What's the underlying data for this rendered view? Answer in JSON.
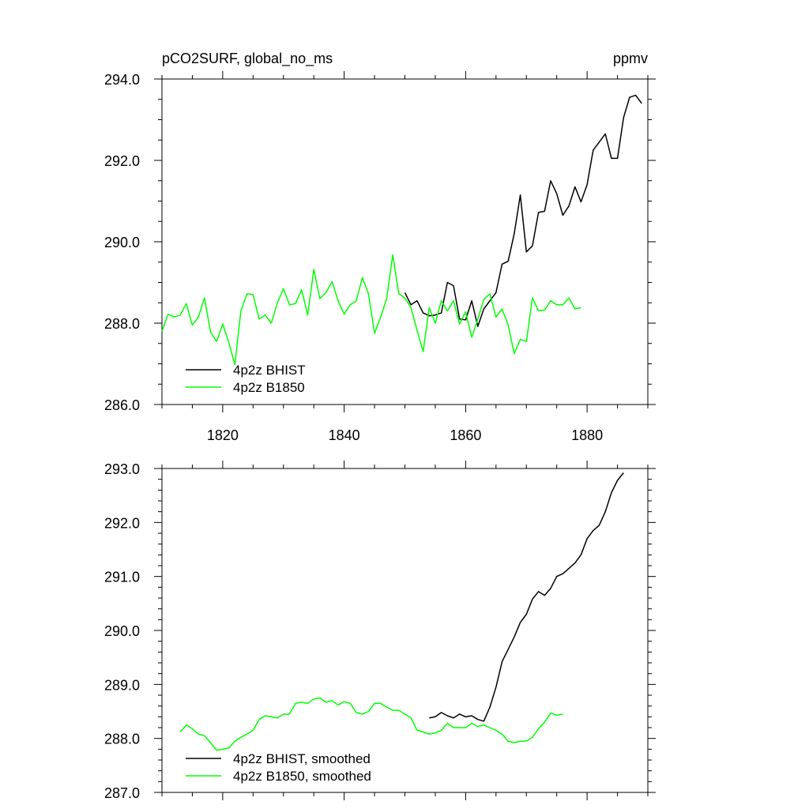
{
  "chart_data": [
    {
      "type": "line",
      "title": "pCO2SURF, global_no_ms",
      "units": "ppmv",
      "xlim": [
        1810,
        1890
      ],
      "ylim": [
        286.0,
        294.0
      ],
      "yticks": [
        "286.0",
        "288.0",
        "290.0",
        "292.0",
        "294.0"
      ],
      "xticks": [
        "1820",
        "1840",
        "1860",
        "1880"
      ],
      "grid": false,
      "legend_position": "bottom-left",
      "series": [
        {
          "name": "4p2z BHIST",
          "color": "#000000",
          "x": [
            1850,
            1851,
            1852,
            1853,
            1854,
            1855,
            1856,
            1857,
            1858,
            1859,
            1860,
            1861,
            1862,
            1863,
            1864,
            1865,
            1866,
            1867,
            1868,
            1869,
            1870,
            1871,
            1872,
            1873,
            1874,
            1875,
            1876,
            1877,
            1878,
            1879,
            1880,
            1881,
            1882,
            1883,
            1884,
            1885,
            1886,
            1887,
            1888,
            1889
          ],
          "values": [
            288.75,
            288.45,
            288.55,
            288.25,
            288.18,
            288.2,
            288.25,
            289.0,
            288.92,
            288.1,
            288.08,
            288.55,
            287.92,
            288.35,
            288.55,
            288.75,
            289.45,
            289.52,
            290.2,
            291.15,
            289.75,
            289.9,
            290.72,
            290.75,
            291.5,
            291.18,
            290.65,
            290.88,
            291.35,
            290.98,
            291.4,
            292.25,
            292.45,
            292.65,
            292.05,
            292.05,
            293.05,
            293.55,
            293.6,
            293.4
          ]
        },
        {
          "name": "4p2z B1850",
          "color": "#00ff00",
          "x": [
            1810,
            1811,
            1812,
            1813,
            1814,
            1815,
            1816,
            1817,
            1818,
            1819,
            1820,
            1821,
            1822,
            1823,
            1824,
            1825,
            1826,
            1827,
            1828,
            1829,
            1830,
            1831,
            1832,
            1833,
            1834,
            1835,
            1836,
            1837,
            1838,
            1839,
            1840,
            1841,
            1842,
            1843,
            1844,
            1845,
            1846,
            1847,
            1848,
            1849,
            1850,
            1851,
            1852,
            1853,
            1854,
            1855,
            1856,
            1857,
            1858,
            1859,
            1860,
            1861,
            1862,
            1863,
            1864,
            1865,
            1866,
            1867,
            1868,
            1869,
            1870,
            1871,
            1872,
            1873,
            1874,
            1875,
            1876,
            1877,
            1878,
            1879
          ],
          "values": [
            287.8,
            288.22,
            288.15,
            288.2,
            288.48,
            287.95,
            288.15,
            288.62,
            287.78,
            287.55,
            287.98,
            287.52,
            286.98,
            288.3,
            288.72,
            288.7,
            288.1,
            288.2,
            288.0,
            288.5,
            288.85,
            288.45,
            288.48,
            288.82,
            288.2,
            289.32,
            288.6,
            288.75,
            289.02,
            288.55,
            288.22,
            288.45,
            288.55,
            289.12,
            288.72,
            287.75,
            288.15,
            288.6,
            289.68,
            288.72,
            288.62,
            288.38,
            287.82,
            287.3,
            288.38,
            288.0,
            288.55,
            288.3,
            288.55,
            287.98,
            288.28,
            287.65,
            288.1,
            288.58,
            288.72,
            288.15,
            288.35,
            287.95,
            287.25,
            287.6,
            287.55,
            288.62,
            288.3,
            288.32,
            288.55,
            288.45,
            288.45,
            288.62,
            288.35,
            288.38
          ]
        }
      ]
    },
    {
      "type": "line",
      "title": "",
      "xlim": [
        1810,
        1890
      ],
      "ylim": [
        287.0,
        293.0
      ],
      "yticks": [
        "287.0",
        "288.0",
        "289.0",
        "290.0",
        "291.0",
        "292.0",
        "293.0"
      ],
      "grid": false,
      "legend_position": "bottom-left",
      "series": [
        {
          "name": "4p2z BHIST, smoothed",
          "color": "#000000",
          "x": [
            1854,
            1855,
            1856,
            1857,
            1858,
            1859,
            1860,
            1861,
            1862,
            1863,
            1864,
            1865,
            1866,
            1867,
            1868,
            1869,
            1870,
            1871,
            1872,
            1873,
            1874,
            1875,
            1876,
            1877,
            1878,
            1879,
            1880,
            1881,
            1882,
            1883,
            1884,
            1885,
            1886
          ],
          "values": [
            288.38,
            288.4,
            288.48,
            288.42,
            288.38,
            288.45,
            288.4,
            288.42,
            288.35,
            288.32,
            288.58,
            288.95,
            289.42,
            289.65,
            289.88,
            290.15,
            290.3,
            290.58,
            290.72,
            290.65,
            290.78,
            291.0,
            291.05,
            291.15,
            291.25,
            291.4,
            291.7,
            291.85,
            291.95,
            292.2,
            292.55,
            292.78,
            292.92
          ]
        },
        {
          "name": "4p2z B1850, smoothed",
          "color": "#00ff00",
          "x": [
            1813,
            1814,
            1815,
            1816,
            1817,
            1818,
            1819,
            1820,
            1821,
            1822,
            1823,
            1824,
            1825,
            1826,
            1827,
            1828,
            1829,
            1830,
            1831,
            1832,
            1833,
            1834,
            1835,
            1836,
            1837,
            1838,
            1839,
            1840,
            1841,
            1842,
            1843,
            1844,
            1845,
            1846,
            1847,
            1848,
            1849,
            1850,
            1851,
            1852,
            1853,
            1854,
            1855,
            1856,
            1857,
            1858,
            1859,
            1860,
            1861,
            1862,
            1863,
            1864,
            1865,
            1866,
            1867,
            1868,
            1869,
            1870,
            1871,
            1872,
            1873,
            1874,
            1875,
            1876
          ],
          "values": [
            288.12,
            288.25,
            288.18,
            288.08,
            288.05,
            287.92,
            287.78,
            287.8,
            287.82,
            287.95,
            288.02,
            288.08,
            288.15,
            288.35,
            288.42,
            288.4,
            288.38,
            288.45,
            288.45,
            288.65,
            288.67,
            288.65,
            288.73,
            288.75,
            288.67,
            288.7,
            288.62,
            288.68,
            288.65,
            288.48,
            288.45,
            288.5,
            288.65,
            288.65,
            288.58,
            288.52,
            288.52,
            288.45,
            288.38,
            288.15,
            288.12,
            288.08,
            288.1,
            288.15,
            288.28,
            288.2,
            288.2,
            288.2,
            288.28,
            288.22,
            288.25,
            288.2,
            288.15,
            288.08,
            287.95,
            287.92,
            287.95,
            287.95,
            288.02,
            288.18,
            288.3,
            288.47,
            288.43,
            288.45
          ]
        }
      ]
    }
  ]
}
